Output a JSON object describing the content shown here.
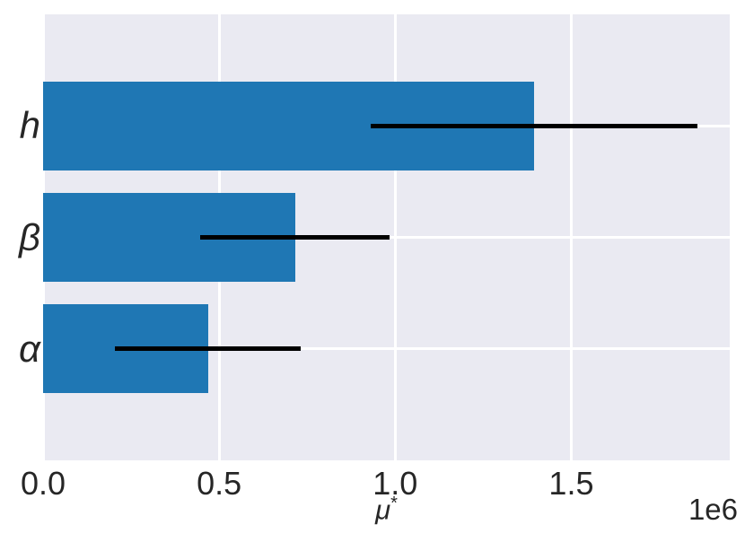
{
  "colors": {
    "figure_background": "#ffffff",
    "plot_background": "#eaeaf2",
    "grid": "#ffffff",
    "bar": "#1f77b4",
    "error_bar": "#000000",
    "text": "#262626"
  },
  "x_axis": {
    "label_base": "μ",
    "label_sup": "*",
    "offset_text": "1e6"
  },
  "chart_data": {
    "type": "bar",
    "orientation": "horizontal",
    "title": "",
    "xlabel": "μ*",
    "ylabel": "",
    "x_unit_multiplier": "1e6",
    "categories": [
      "h",
      "β",
      "α"
    ],
    "category_slugs": [
      "h",
      "beta",
      "alpha"
    ],
    "values": [
      1395000,
      715000,
      468000
    ],
    "xerr": [
      464000,
      269000,
      264000
    ],
    "xlim": [
      0,
      1950000
    ],
    "ylim": [
      -1,
      3
    ],
    "x_ticks": [
      0,
      500000,
      1000000,
      1500000
    ],
    "x_tick_labels": [
      "0.0",
      "0.5",
      "1.0",
      "1.5"
    ],
    "bar_height_frac": 0.8,
    "grid": true,
    "legend": false
  }
}
